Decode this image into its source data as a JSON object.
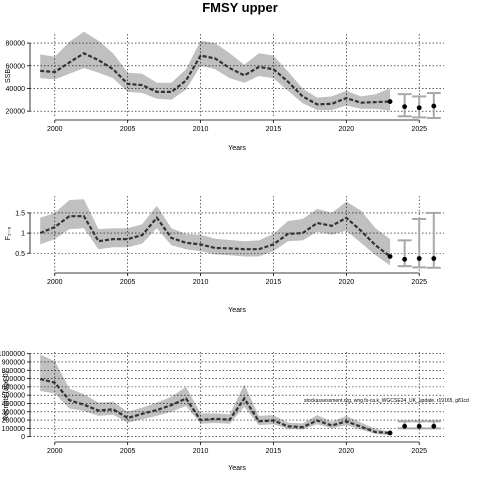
{
  "title": "FMSY upper",
  "note": "stockassessment.org, wng.fs-ca.k_WGCSE24_UK_update, r19165, g81cd",
  "colors": {
    "band": "#c0c0c0",
    "line": "#333333",
    "point": "#000000",
    "errorbar": "#a8a8a8",
    "grid": "#000000"
  },
  "chart_data": [
    {
      "type": "line",
      "xlabel": "Years",
      "ylabel": "SSB",
      "xlim": [
        1998.3,
        2026.7
      ],
      "ylim": [
        14000,
        88000
      ],
      "xticks": [
        2000,
        2005,
        2010,
        2015,
        2020,
        2025
      ],
      "yticks": [
        20000,
        40000,
        60000,
        80000
      ],
      "ytick_labels": [
        "20000",
        "40000",
        "60000",
        "80000"
      ],
      "grid": true,
      "x": [
        1999,
        2000,
        2001,
        2002,
        2003,
        2004,
        2005,
        2006,
        2007,
        2008,
        2009,
        2010,
        2011,
        2012,
        2013,
        2014,
        2015,
        2016,
        2017,
        2018,
        2019,
        2020,
        2021,
        2022,
        2023
      ],
      "estimate": [
        55500,
        54500,
        63000,
        71000,
        65000,
        57000,
        44000,
        43000,
        37000,
        37000,
        47000,
        69000,
        66500,
        58000,
        51500,
        59000,
        57000,
        46000,
        33000,
        26000,
        26500,
        31500,
        27500,
        28000,
        28500
      ],
      "lower": [
        49000,
        48000,
        53000,
        58000,
        54000,
        49000,
        37000,
        36000,
        31000,
        30000,
        39000,
        60000,
        57000,
        49000,
        45000,
        51000,
        49000,
        38000,
        27000,
        21000,
        21000,
        25000,
        22000,
        22000,
        20500
      ],
      "upper": [
        70000,
        68000,
        81000,
        90000,
        82000,
        71000,
        54000,
        53000,
        45000,
        45000,
        57000,
        82000,
        80000,
        71000,
        61000,
        71000,
        69000,
        55000,
        40000,
        32000,
        33000,
        38000,
        33000,
        35000,
        40000
      ],
      "forecast": [
        {
          "year": 2024,
          "value": 24000,
          "low": 15500,
          "high": 35000
        },
        {
          "year": 2025,
          "value": 23000,
          "low": 14500,
          "high": 33000
        },
        {
          "year": 2026,
          "value": 24500,
          "low": 14000,
          "high": 36000
        }
      ]
    },
    {
      "type": "line",
      "xlabel": "Years",
      "ylabel": "F₂₋₆",
      "xlim": [
        1998.3,
        2026.7
      ],
      "ylim": [
        0.06,
        1.92
      ],
      "xticks": [
        2000,
        2005,
        2010,
        2015,
        2020,
        2025
      ],
      "yticks": [
        0.5,
        1.0,
        1.5
      ],
      "ytick_labels": [
        "0.5",
        "1",
        "1.5"
      ],
      "grid": true,
      "x": [
        1999,
        2000,
        2001,
        2002,
        2003,
        2004,
        2005,
        2006,
        2007,
        2008,
        2009,
        2010,
        2011,
        2012,
        2013,
        2014,
        2015,
        2016,
        2017,
        2018,
        2019,
        2020,
        2021,
        2022,
        2023
      ],
      "estimate": [
        1.0,
        1.15,
        1.42,
        1.42,
        0.8,
        0.85,
        0.85,
        0.95,
        1.38,
        0.88,
        0.76,
        0.72,
        0.63,
        0.62,
        0.6,
        0.6,
        0.72,
        0.98,
        1.0,
        1.25,
        1.18,
        1.38,
        1.06,
        0.7,
        0.42
      ],
      "lower": [
        0.72,
        0.85,
        1.1,
        1.12,
        0.6,
        0.65,
        0.65,
        0.74,
        1.12,
        0.7,
        0.6,
        0.55,
        0.47,
        0.45,
        0.42,
        0.42,
        0.55,
        0.8,
        0.82,
        1.03,
        0.96,
        1.06,
        0.76,
        0.45,
        0.2
      ],
      "upper": [
        1.38,
        1.5,
        1.82,
        1.84,
        1.1,
        1.12,
        1.12,
        1.22,
        1.68,
        1.12,
        0.98,
        0.96,
        0.86,
        0.83,
        0.8,
        0.82,
        0.98,
        1.3,
        1.35,
        1.6,
        1.5,
        1.78,
        1.56,
        1.12,
        0.85
      ],
      "forecast": [
        {
          "year": 2024,
          "value": 0.35,
          "low": 0.18,
          "high": 0.82
        },
        {
          "year": 2025,
          "value": 0.37,
          "low": 0.15,
          "high": 1.35
        },
        {
          "year": 2026,
          "value": 0.37,
          "low": 0.14,
          "high": 1.5
        }
      ]
    },
    {
      "type": "line",
      "xlabel": "Years",
      "ylabel": "Recruits (age 0)",
      "xlim": [
        1998.3,
        2026.7
      ],
      "ylim": [
        -40000,
        1020000
      ],
      "xticks": [
        2000,
        2005,
        2010,
        2015,
        2020,
        2025
      ],
      "yticks": [
        0,
        100000,
        200000,
        300000,
        400000,
        500000,
        600000,
        700000,
        800000,
        900000,
        1000000
      ],
      "ytick_labels": [
        "0",
        "100000",
        "200000",
        "300000",
        "400000",
        "500000",
        "600000",
        "700000",
        "800000",
        "900000",
        "1000000"
      ],
      "grid": true,
      "x": [
        1999,
        2000,
        2001,
        2002,
        2003,
        2004,
        2005,
        2006,
        2007,
        2008,
        2009,
        2010,
        2011,
        2012,
        2013,
        2014,
        2015,
        2016,
        2017,
        2018,
        2019,
        2020,
        2021,
        2022,
        2023
      ],
      "estimate": [
        695000,
        650000,
        440000,
        385000,
        315000,
        330000,
        225000,
        275000,
        320000,
        380000,
        460000,
        200000,
        215000,
        205000,
        460000,
        185000,
        195000,
        125000,
        115000,
        195000,
        135000,
        185000,
        120000,
        55000,
        45000
      ],
      "lower": [
        550000,
        520000,
        340000,
        310000,
        250000,
        265000,
        170000,
        210000,
        250000,
        300000,
        370000,
        155000,
        165000,
        155000,
        360000,
        140000,
        150000,
        95000,
        85000,
        150000,
        100000,
        140000,
        85000,
        35000,
        15000
      ],
      "upper": [
        990000,
        910000,
        580000,
        510000,
        410000,
        420000,
        300000,
        350000,
        410000,
        480000,
        600000,
        280000,
        280000,
        270000,
        630000,
        250000,
        260000,
        170000,
        160000,
        260000,
        180000,
        250000,
        170000,
        95000,
        60000
      ],
      "forecast": [
        {
          "year": 2024,
          "value": 125000,
          "low": 100000,
          "high": 185000
        },
        {
          "year": 2025,
          "value": 125000,
          "low": 100000,
          "high": 185000
        },
        {
          "year": 2026,
          "value": 125000,
          "low": 100000,
          "high": 185000
        }
      ]
    }
  ]
}
